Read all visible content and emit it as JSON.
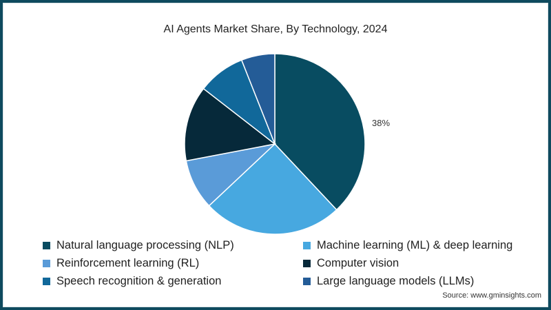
{
  "chart_data": {
    "type": "pie",
    "title": "AI Agents Market Share, By Technology, 2024",
    "categories": [
      "Natural language processing (NLP)",
      "Machine learning (ML) & deep learning",
      "Reinforcement learning (RL)",
      "Computer vision",
      "Speech recognition & generation",
      "Large language models (LLMs)"
    ],
    "values": [
      38,
      25,
      9,
      13.5,
      8.5,
      6
    ],
    "colors": [
      "#084c61",
      "#47a8e0",
      "#5a9bd8",
      "#06293a",
      "#11689a",
      "#245c97"
    ],
    "annotations": [
      {
        "label": "38%",
        "category": "Natural language processing (NLP)"
      }
    ],
    "legend_position": "bottom",
    "start_angle": "top, clockwise"
  },
  "title": "AI Agents Market Share, By Technology, 2024",
  "data_label": "38%",
  "legend": [
    {
      "label": "Natural language processing (NLP)",
      "color": "#084c61"
    },
    {
      "label": "Machine learning (ML) & deep learning",
      "color": "#47a8e0"
    },
    {
      "label": "Reinforcement learning (RL)",
      "color": "#5a9bd8"
    },
    {
      "label": "Computer vision",
      "color": "#06293a"
    },
    {
      "label": "Speech recognition & generation",
      "color": "#11689a"
    },
    {
      "label": "Large language models (LLMs)",
      "color": "#245c97"
    }
  ],
  "source": "Source: www.gminsights.com"
}
